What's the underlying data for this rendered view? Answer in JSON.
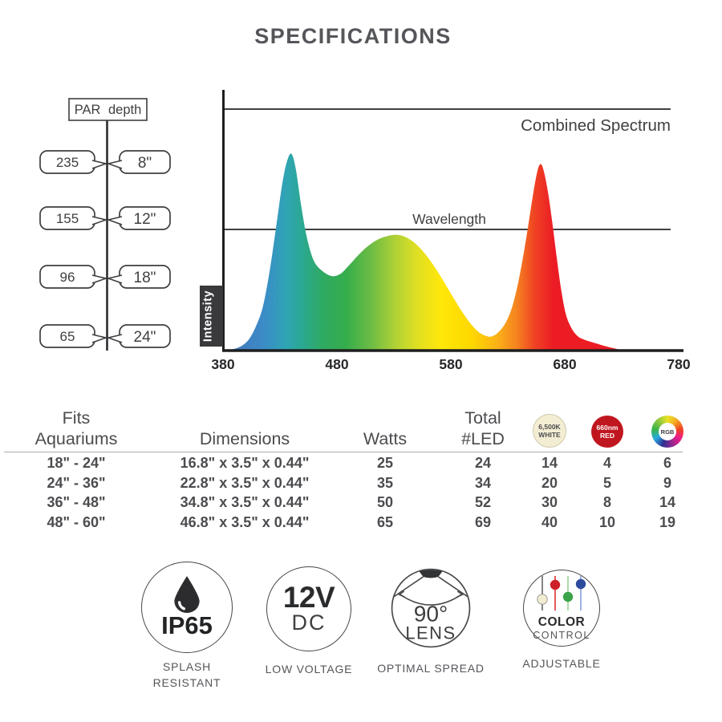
{
  "title": "SPECIFICATIONS",
  "par_diagram": {
    "header": "PAR depth",
    "rows": [
      {
        "par": "235",
        "depth": "8\""
      },
      {
        "par": "155",
        "depth": "12\""
      },
      {
        "par": "96",
        "depth": "18\""
      },
      {
        "par": "65",
        "depth": "24\""
      }
    ]
  },
  "chart_data": {
    "type": "area",
    "title": "Combined Spectrum",
    "inline_label": "Wavelength",
    "ylabel": "Intensity",
    "xlim": [
      380,
      780
    ],
    "x_unit": "nm",
    "x_ticks": [
      "380",
      "480",
      "580",
      "680",
      "780"
    ],
    "grid": false,
    "legend_position": "none",
    "peaks_nm": {
      "blue": 440,
      "green": 533,
      "red": 658
    },
    "spectrum_points": [
      [
        385,
        0.002
      ],
      [
        391,
        0.008
      ],
      [
        397,
        0.02
      ],
      [
        403,
        0.045
      ],
      [
        409,
        0.095
      ],
      [
        415,
        0.17
      ],
      [
        421,
        0.31
      ],
      [
        427,
        0.49
      ],
      [
        432,
        0.645
      ],
      [
        436,
        0.73
      ],
      [
        440,
        0.762
      ],
      [
        444,
        0.7
      ],
      [
        449,
        0.55
      ],
      [
        454,
        0.43
      ],
      [
        460,
        0.345
      ],
      [
        468,
        0.305
      ],
      [
        476,
        0.288
      ],
      [
        483,
        0.297
      ],
      [
        490,
        0.327
      ],
      [
        498,
        0.366
      ],
      [
        506,
        0.4
      ],
      [
        515,
        0.428
      ],
      [
        524,
        0.443
      ],
      [
        533,
        0.448
      ],
      [
        541,
        0.438
      ],
      [
        549,
        0.414
      ],
      [
        557,
        0.377
      ],
      [
        565,
        0.329
      ],
      [
        573,
        0.273
      ],
      [
        581,
        0.214
      ],
      [
        589,
        0.156
      ],
      [
        597,
        0.106
      ],
      [
        604,
        0.073
      ],
      [
        610,
        0.058
      ],
      [
        615,
        0.054
      ],
      [
        621,
        0.068
      ],
      [
        628,
        0.107
      ],
      [
        634,
        0.172
      ],
      [
        640,
        0.282
      ],
      [
        646,
        0.43
      ],
      [
        651,
        0.572
      ],
      [
        655,
        0.675
      ],
      [
        658,
        0.72
      ],
      [
        661,
        0.704
      ],
      [
        665,
        0.62
      ],
      [
        669,
        0.497
      ],
      [
        673,
        0.357
      ],
      [
        677,
        0.232
      ],
      [
        681,
        0.14
      ],
      [
        686,
        0.086
      ],
      [
        691,
        0.057
      ],
      [
        696,
        0.044
      ],
      [
        702,
        0.035
      ],
      [
        708,
        0.027
      ],
      [
        714,
        0.019
      ],
      [
        720,
        0.012
      ],
      [
        725,
        0.007
      ],
      [
        730,
        0.002
      ]
    ],
    "gradient_stops": [
      [
        0.02,
        "#4577bb"
      ],
      [
        0.09,
        "#3b8cc7"
      ],
      [
        0.14,
        "#2fa5b4"
      ],
      [
        0.175,
        "#2ba890"
      ],
      [
        0.22,
        "#2faa62"
      ],
      [
        0.27,
        "#35ad4b"
      ],
      [
        0.325,
        "#6cbc44"
      ],
      [
        0.38,
        "#b2d235"
      ],
      [
        0.43,
        "#e3e020"
      ],
      [
        0.48,
        "#ffe70a"
      ],
      [
        0.545,
        "#fed800"
      ],
      [
        0.6,
        "#fbb316"
      ],
      [
        0.645,
        "#f58220"
      ],
      [
        0.685,
        "#ef4123"
      ],
      [
        0.725,
        "#ec1c24"
      ],
      [
        1,
        "#ec1c24"
      ]
    ]
  },
  "table": {
    "col_headers": [
      {
        "line1": "Fits",
        "line2": "Aquariums"
      },
      {
        "line1": "",
        "line2": "Dimensions"
      },
      {
        "line1": "",
        "line2": "Watts"
      },
      {
        "line1": "Total",
        "line2": "#LED"
      }
    ],
    "led_columns": [
      {
        "label": "6,500K WHITE",
        "line1": "6,500K",
        "line2": "WHITE",
        "fill": "#f3edd3",
        "text_color": "#4b4c4f"
      },
      {
        "label": "660nm RED",
        "line1": "660nm",
        "line2": "RED",
        "fill": "#c0161f",
        "text_color": "#ffffff"
      },
      {
        "label": "RGB",
        "line1": "RGB",
        "style": "color-wheel"
      }
    ],
    "rows": [
      [
        "18\" - 24\"",
        "16.8\" x 3.5\" x 0.44\"",
        "25",
        "24",
        "14",
        "4",
        "6"
      ],
      [
        "24\" - 36\"",
        "22.8\" x 3.5\" x 0.44\"",
        "35",
        "34",
        "20",
        "5",
        "9"
      ],
      [
        "36\" - 48\"",
        "34.8\" x 3.5\" x 0.44\"",
        "50",
        "52",
        "30",
        "8",
        "14"
      ],
      [
        "48\" - 60\"",
        "46.8\" x 3.5\" x 0.44\"",
        "65",
        "69",
        "40",
        "10",
        "19"
      ]
    ]
  },
  "badges": [
    {
      "text": "IP65",
      "subtext": "",
      "caption_line1": "SPLASH",
      "caption_line2": "RESISTANT"
    },
    {
      "text": "12V",
      "subtext": "DC",
      "caption_line1": "LOW VOLTAGE",
      "caption_line2": ""
    },
    {
      "text": "90°",
      "subtext": "LENS",
      "caption_line1": "OPTIMAL SPREAD",
      "caption_line2": ""
    },
    {
      "text": "COLOR",
      "subtext": "CONTROL",
      "caption_line1": "ADJUSTABLE",
      "caption_line2": ""
    }
  ],
  "badge_colors": {
    "slider_knob_white": "#f2ecd2",
    "slider_knob_red": "#ce2127",
    "slider_knob_green": "#3ba449",
    "slider_knob_blue": "#2e4a9d"
  }
}
